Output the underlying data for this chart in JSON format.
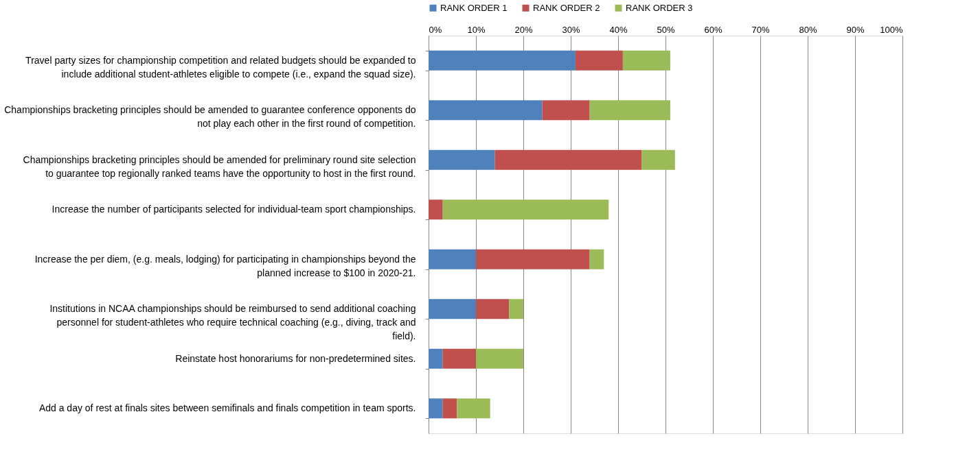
{
  "chart_data": {
    "type": "bar",
    "orientation": "horizontal",
    "stacked": true,
    "categories": [
      "Travel party sizes for championship competition and related budgets should be expanded to include additional student-athletes eligible to compete (i.e., expand the squad size).",
      "Championships bracketing principles should be amended to guarantee conference opponents do not play each other in the first round of competition.",
      "Championships bracketing principles should be amended for preliminary round site selection to guarantee top regionally ranked teams have the opportunity to host in the first round.",
      "Increase the number of participants selected for individual-team sport championships.",
      "Increase the per diem, (e.g. meals, lodging) for participating in championships beyond the planned increase to $100 in 2020-21.",
      "Institutions in NCAA championships should be reimbursed to send additional coaching personnel for student-athletes who require technical coaching (e.g., diving, track and field).",
      "Reinstate host honorariums for non-predetermined sites.",
      "Add a day of rest at finals sites between semifinals and finals competition in team sports."
    ],
    "series": [
      {
        "name": "RANK ORDER 1",
        "color": "#4f81bd",
        "values": [
          31,
          24,
          14,
          0,
          10,
          10,
          3,
          3
        ]
      },
      {
        "name": "RANK ORDER 2",
        "color": "#c0504d",
        "values": [
          10,
          10,
          31,
          3,
          24,
          7,
          7,
          3
        ]
      },
      {
        "name": "RANK ORDER 3",
        "color": "#9bbb59",
        "values": [
          10,
          17,
          7,
          35,
          3,
          3,
          10,
          7
        ]
      }
    ],
    "xlim": [
      0,
      100
    ],
    "xticks": [
      {
        "value": 0,
        "label": "0%"
      },
      {
        "value": 10,
        "label": "10%"
      },
      {
        "value": 20,
        "label": "20%"
      },
      {
        "value": 30,
        "label": "30%"
      },
      {
        "value": 40,
        "label": "40%"
      },
      {
        "value": 50,
        "label": "50%"
      },
      {
        "value": 60,
        "label": "60%"
      },
      {
        "value": 70,
        "label": "70%"
      },
      {
        "value": 80,
        "label": "80%"
      },
      {
        "value": 90,
        "label": "90%"
      },
      {
        "value": 100,
        "label": "100%"
      }
    ],
    "grid": "x",
    "legend": "top"
  }
}
